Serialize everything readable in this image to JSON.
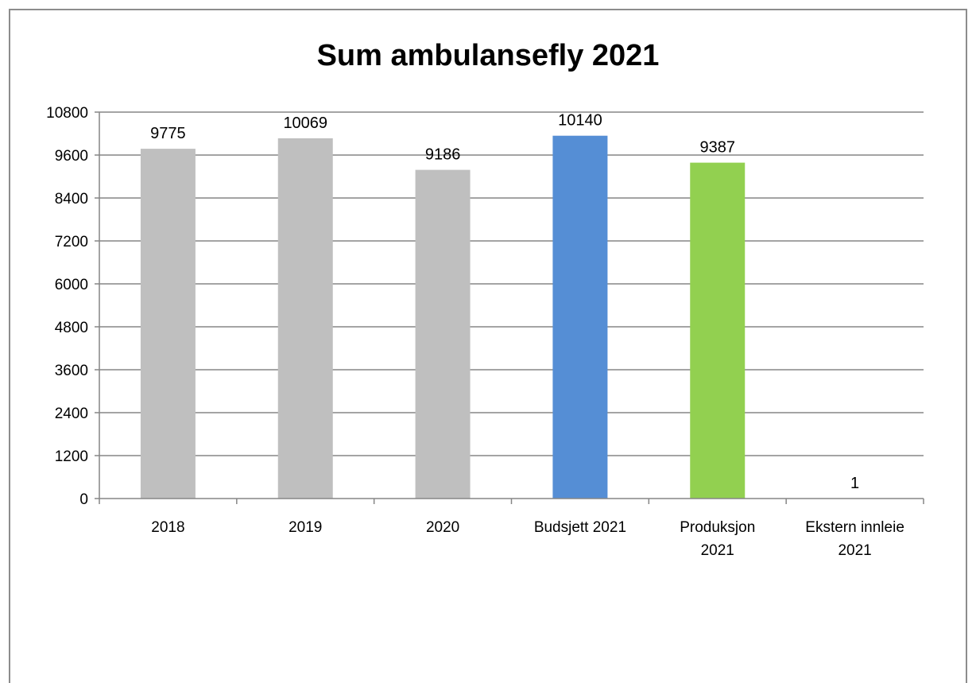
{
  "chart_data": {
    "type": "bar",
    "title": "Sum ambulansefly 2021",
    "xlabel": "",
    "ylabel": "",
    "categories": [
      [
        "2018"
      ],
      [
        "2019"
      ],
      [
        "2020"
      ],
      [
        "Budsjett 2021"
      ],
      [
        "Produksjon",
        "2021"
      ],
      [
        "Ekstern innleie",
        "2021"
      ]
    ],
    "values": [
      9775,
      10069,
      9186,
      10140,
      9387,
      1
    ],
    "data_labels": [
      "9775",
      "10069",
      "9186",
      "10140",
      "9387",
      "1"
    ],
    "bar_colors": [
      "#bfbfbf",
      "#bfbfbf",
      "#bfbfbf",
      "#558ed5",
      "#92d050",
      "#bfbfbf"
    ],
    "y_ticks": [
      0,
      1200,
      2400,
      3600,
      4800,
      6000,
      7200,
      8400,
      9600,
      10800
    ],
    "ylim": [
      0,
      10800
    ],
    "grid": true,
    "legend": "none"
  }
}
